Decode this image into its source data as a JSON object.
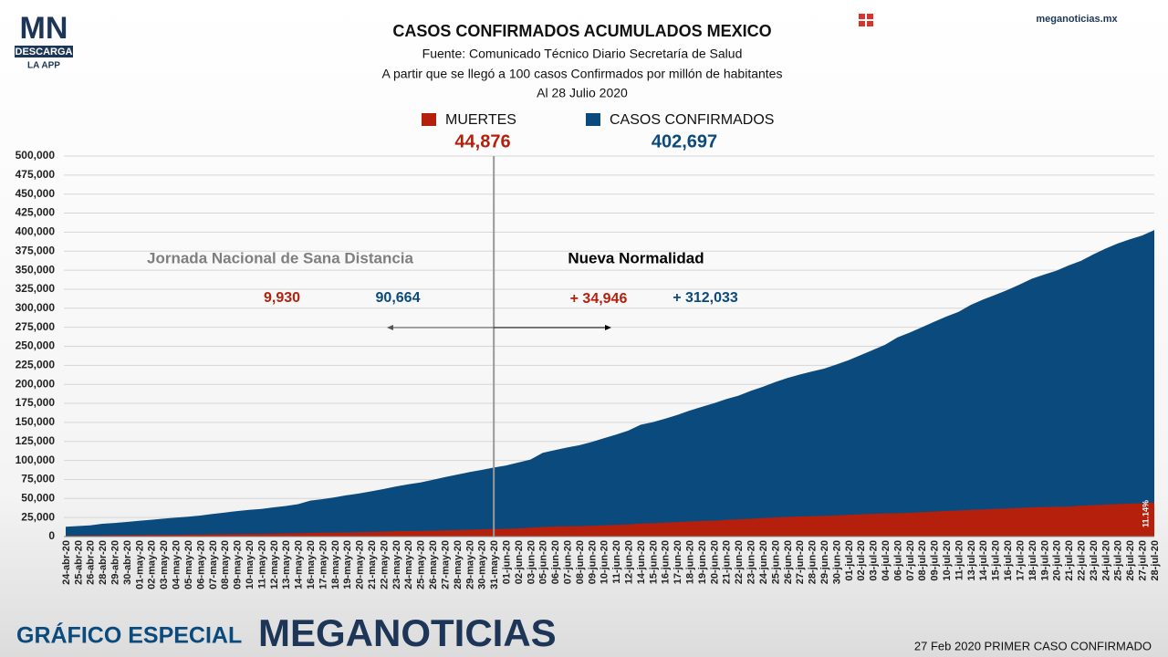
{
  "chart_data": {
    "type": "area",
    "title": "CASOS CONFIRMADOS ACUMULADOS MEXICO",
    "subtitle": [
      "Fuente: Comunicado Técnico Diario Secretaría de Salud",
      "A partir que se llegó a 100 casos Confirmados por millón de habitantes",
      "Al 28 Julio 2020"
    ],
    "categories": [
      "24-abr-20",
      "25-abr-20",
      "26-abr-20",
      "28-abr-20",
      "29-abr-20",
      "30-abr-20",
      "01-may-20",
      "02-may-20",
      "03-may-20",
      "04-may-20",
      "05-may-20",
      "06-may-20",
      "07-may-20",
      "08-may-20",
      "09-may-20",
      "10-may-20",
      "11-may-20",
      "12-may-20",
      "13-may-20",
      "14-may-20",
      "16-may-20",
      "17-may-20",
      "18-may-20",
      "19-may-20",
      "20-may-20",
      "21-may-20",
      "22-may-20",
      "23-may-20",
      "24-may-20",
      "25-may-20",
      "26-may-20",
      "27-may-20",
      "28-may-20",
      "29-may-20",
      "30-may-20",
      "31-may-20",
      "01-jun-20",
      "02-jun-20",
      "03-jun-20",
      "05-jun-20",
      "06-jun-20",
      "07-jun-20",
      "08-jun-20",
      "09-jun-20",
      "10-jun-20",
      "11-jun-20",
      "12-jun-20",
      "14-jun-20",
      "15-jun-20",
      "16-jun-20",
      "17-jun-20",
      "18-jun-20",
      "19-jun-20",
      "20-jun-20",
      "21-jun-20",
      "22-jun-20",
      "23-jun-20",
      "24-jun-20",
      "25-jun-20",
      "26-jun-20",
      "27-jun-20",
      "28-jun-20",
      "29-jun-20",
      "30-jun-20",
      "01-jul-20",
      "02-jul-20",
      "03-jul-20",
      "04-jul-20",
      "06-jul-20",
      "07-jul-20",
      "08-jul-20",
      "09-jul-20",
      "10-jul-20",
      "11-jul-20",
      "13-jul-20",
      "14-jul-20",
      "15-jul-20",
      "16-jul-20",
      "17-jul-20",
      "18-jul-20",
      "19-jul-20",
      "20-jul-20",
      "21-jul-20",
      "22-jul-20",
      "23-jul-20",
      "24-jul-20",
      "25-jul-20",
      "26-jul-20",
      "27-jul-20",
      "28-jul-20"
    ],
    "series": [
      {
        "name": "CASOS CONFIRMADOS",
        "color": "#0b4a7d",
        "total_label": "402,697",
        "values": [
          12872,
          13842,
          14677,
          16752,
          17799,
          19224,
          20739,
          22088,
          23471,
          24905,
          26025,
          27634,
          29616,
          31522,
          33460,
          35022,
          36327,
          38324,
          40186,
          42595,
          47144,
          49219,
          51633,
          54346,
          56594,
          59567,
          62527,
          65856,
          68620,
          71105,
          74560,
          78023,
          81400,
          84627,
          87512,
          90664,
          93435,
          97326,
          101238,
          110026,
          113619,
          117103,
          120102,
          124301,
          129184,
          133974,
          139196,
          146837,
          150264,
          154863,
          159793,
          165455,
          170485,
          175202,
          180545,
          185122,
          191410,
          196847,
          202951,
          208392,
          212802,
          216852,
          220657,
          226089,
          231770,
          238511,
          245251,
          252165,
          261750,
          268008,
          275003,
          282283,
          289174,
          295268,
          304435,
          311486,
          317635,
          324041,
          331298,
          338913,
          344224,
          349396,
          356255,
          362274,
          370712,
          378285,
          385036,
          390516,
          395489,
          402697
        ]
      },
      {
        "name": "MUERTES",
        "color": "#b5200d",
        "total_label": "44,876",
        "values": [
          1069,
          1221,
          1305,
          1569,
          1732,
          1859,
          1972,
          2061,
          2154,
          2271,
          2507,
          2704,
          2961,
          3160,
          3353,
          3465,
          3573,
          3926,
          4220,
          4477,
          4767,
          5045,
          5177,
          5332,
          5666,
          6090,
          6510,
          6989,
          7179,
          7394,
          7633,
          8134,
          8597,
          9044,
          9415,
          9930,
          10167,
          10637,
          11729,
          12545,
          13170,
          13511,
          13699,
          14053,
          14649,
          15357,
          15944,
          17141,
          17580,
          18310,
          19080,
          19747,
          20394,
          20781,
          21825,
          22584,
          23377,
          24324,
          25060,
          25779,
          26381,
          26648,
          27121,
          27769,
          28510,
          29189,
          29843,
          30366,
          30639,
          31119,
          32014,
          32796,
          33526,
          34191,
          35006,
          35491,
          36327,
          36906,
          37574,
          38310,
          38888,
          39184,
          39485,
          40400,
          41190,
          41908,
          42645,
          43374,
          43680,
          44876
        ]
      }
    ],
    "ylim": [
      0,
      500000
    ],
    "yticks": [
      0,
      {
        "value": 25000,
        "label": "25,000"
      },
      {
        "value": 50000,
        "label": "50,000"
      },
      {
        "value": 75000,
        "label": "75,000"
      },
      {
        "value": 100000,
        "label": "100,000"
      },
      {
        "value": 125000,
        "label": "125,000"
      },
      {
        "value": 150000,
        "label": "150,000"
      },
      {
        "value": 175000,
        "label": "175,000"
      },
      {
        "value": 200000,
        "label": "200,000"
      },
      {
        "value": 225000,
        "label": "225,000"
      },
      {
        "value": 250000,
        "label": "250,000"
      },
      {
        "value": 275000,
        "label": "275,000"
      },
      {
        "value": 300000,
        "label": "300,000"
      },
      {
        "value": 325000,
        "label": "325,000"
      },
      {
        "value": 350000,
        "label": "350,000"
      },
      {
        "value": 375000,
        "label": "375,000"
      },
      {
        "value": 400000,
        "label": "400,000"
      },
      {
        "value": 425000,
        "label": "425,000"
      },
      {
        "value": 450000,
        "label": "450,000"
      },
      {
        "value": 475000,
        "label": "475,000"
      },
      {
        "value": 500000,
        "label": "500,000"
      }
    ],
    "grid": true,
    "divider": "31-may-20",
    "annotations": [
      {
        "text": "Jornada Nacional de Sana Distancia",
        "color": "#7f7f7f"
      },
      {
        "text": "Nueva Normalidad",
        "color": "#000000"
      },
      {
        "text": "9,930",
        "color": "#b5200d"
      },
      {
        "text": "90,664",
        "color": "#0b4a7d"
      },
      {
        "text": "+ 34,946",
        "color": "#b5200d"
      },
      {
        "text": "+ 312,033",
        "color": "#0b4a7d"
      },
      {
        "text": "11.14%",
        "color": "#ffffff"
      }
    ]
  },
  "header": {
    "logo": "MN",
    "logo_sub": "DESCARGA",
    "logo_sub2": "LA APP",
    "site": "meganoticias.mx"
  },
  "footer": {
    "left": "GRÁFICO ESPECIAL",
    "brand": "MEGANOTICIAS",
    "right": "27 Feb 2020 PRIMER CASO CONFIRMADO"
  }
}
